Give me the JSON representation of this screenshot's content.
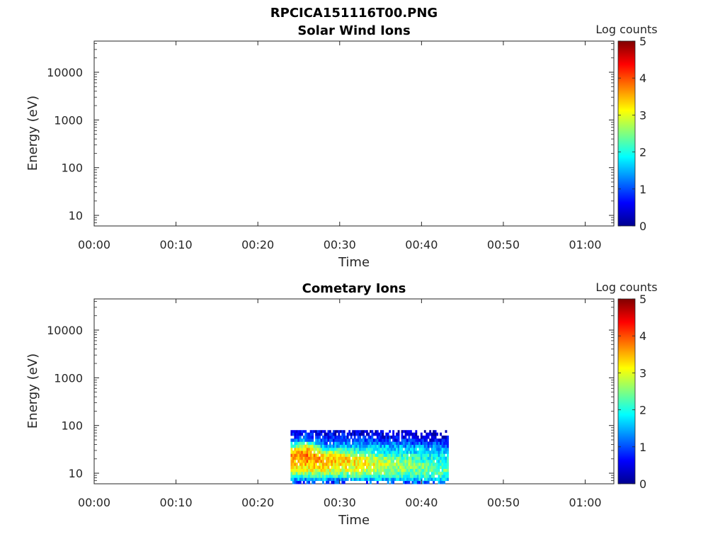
{
  "figure": {
    "filename": "RPCICA151116T00.PNG"
  },
  "chart_data": [
    {
      "type": "heatmap",
      "title": "Solar Wind Ions",
      "xlabel": "Time",
      "ylabel": "Energy (eV)",
      "x_ticks": [
        "00:00",
        "00:10",
        "00:20",
        "00:30",
        "00:40",
        "00:50",
        "01:00"
      ],
      "y_ticks": [
        "10",
        "100",
        "1000",
        "10000"
      ],
      "y_scale": "log",
      "ylim": [
        6,
        45000
      ],
      "xlim_minutes": [
        0,
        63.5
      ],
      "colorbar": {
        "label": "Log counts",
        "ticks": [
          "0",
          "1",
          "2",
          "3",
          "4",
          "5"
        ],
        "range": [
          0,
          5
        ],
        "colormap": "jet"
      },
      "data": []
    },
    {
      "type": "heatmap",
      "title": "Cometary Ions",
      "xlabel": "Time",
      "ylabel": "Energy (eV)",
      "x_ticks": [
        "00:00",
        "00:10",
        "00:20",
        "00:30",
        "00:40",
        "00:50",
        "01:00"
      ],
      "y_ticks": [
        "10",
        "100",
        "1000",
        "10000"
      ],
      "y_scale": "log",
      "ylim": [
        6,
        45000
      ],
      "xlim_minutes": [
        0,
        63.5
      ],
      "colorbar": {
        "label": "Log counts",
        "ticks": [
          "0",
          "1",
          "2",
          "3",
          "4",
          "5"
        ],
        "range": [
          0,
          5
        ],
        "colormap": "jet"
      },
      "data": {
        "time_range_minutes": [
          24.0,
          43.3
        ],
        "energy_range_ev": [
          6,
          80
        ],
        "energy_bins_ev": [
          6.5,
          7.5,
          8.7,
          10.0,
          11.6,
          13.4,
          15.5,
          17.9,
          20.7,
          24.0,
          27.7,
          32.0,
          37.0,
          42.8,
          49.5,
          57.2,
          66.1,
          76.4
        ],
        "approx_log_counts_by_time": [
          {
            "t_min": 24.5,
            "log_counts": [
              1.0,
              1.5,
              2.0,
              2.6,
              3.0,
              3.2,
              3.3,
              3.5,
              3.6,
              3.6,
              3.4,
              3.0,
              2.3,
              1.6,
              1.2,
              0.9,
              0.8,
              0.6
            ]
          },
          {
            "t_min": 26.0,
            "log_counts": [
              0.8,
              1.4,
              2.0,
              2.6,
              3.0,
              3.2,
              3.4,
              3.6,
              3.8,
              3.8,
              3.7,
              3.5,
              3.1,
              2.3,
              1.5,
              1.0,
              0.8,
              0.6
            ]
          },
          {
            "t_min": 28.0,
            "log_counts": [
              0.9,
              1.5,
              2.1,
              2.6,
              3.0,
              3.2,
              3.3,
              3.4,
              3.4,
              3.2,
              2.8,
              2.2,
              1.6,
              1.2,
              1.0,
              0.8,
              0.6,
              0.5
            ]
          },
          {
            "t_min": 30.5,
            "log_counts": [
              0.9,
              1.5,
              2.1,
              2.5,
              2.9,
              3.1,
              3.2,
              3.3,
              3.3,
              3.0,
              2.5,
              2.0,
              1.6,
              1.3,
              1.0,
              0.7,
              0.5,
              0.4
            ]
          },
          {
            "t_min": 34.0,
            "log_counts": [
              1.0,
              1.6,
              2.1,
              2.4,
              2.7,
              2.9,
              3.0,
              3.0,
              2.8,
              2.4,
              2.0,
              1.8,
              1.6,
              1.3,
              1.0,
              0.7,
              0.5,
              0.3
            ]
          },
          {
            "t_min": 38.0,
            "log_counts": [
              1.1,
              1.6,
              2.0,
              2.3,
              2.5,
              2.6,
              2.6,
              2.4,
              2.2,
              2.0,
              1.8,
              1.6,
              1.4,
              1.1,
              0.8,
              0.5,
              0.3,
              0.2
            ]
          },
          {
            "t_min": 42.0,
            "log_counts": [
              1.2,
              1.7,
              2.0,
              2.2,
              2.3,
              2.3,
              2.2,
              2.0,
              1.9,
              1.8,
              1.7,
              1.5,
              1.2,
              0.9,
              0.6,
              0.4,
              0.2,
              0.1
            ]
          }
        ]
      }
    }
  ]
}
